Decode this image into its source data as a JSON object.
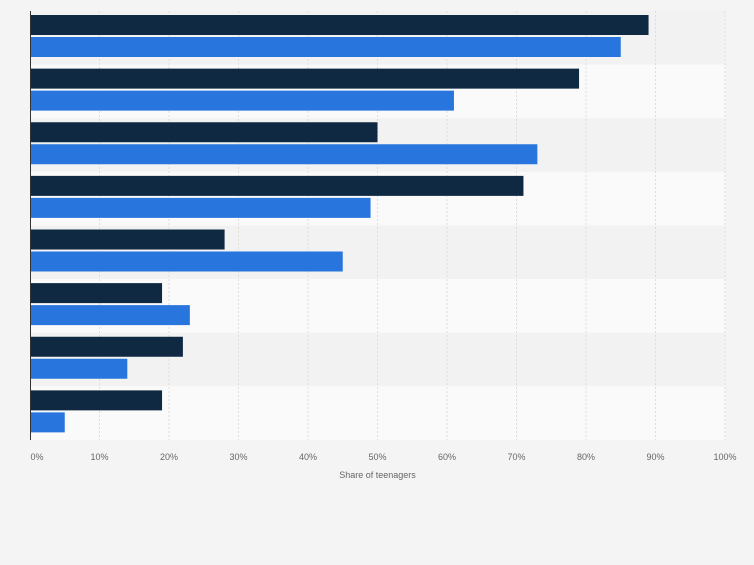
{
  "chart_data": {
    "type": "bar",
    "orientation": "horizontal",
    "categories": [
      "",
      "",
      "",
      "",
      "",
      "",
      "",
      ""
    ],
    "series": [
      {
        "values": [
          89,
          79,
          50,
          71,
          28,
          19,
          22,
          19
        ]
      },
      {
        "values": [
          85,
          61,
          73,
          49,
          45,
          23,
          14,
          5
        ]
      }
    ],
    "colors": {
      "series1": "#0f2942",
      "series2": "#2876dd"
    },
    "xlabel": "Share of teenagers",
    "ylabel": "",
    "xlim": [
      0,
      100
    ],
    "xticks": [
      "0%",
      "10%",
      "20%",
      "30%",
      "40%",
      "50%",
      "60%",
      "70%",
      "80%",
      "90%",
      "100%"
    ],
    "grid": true,
    "legend": "none"
  }
}
